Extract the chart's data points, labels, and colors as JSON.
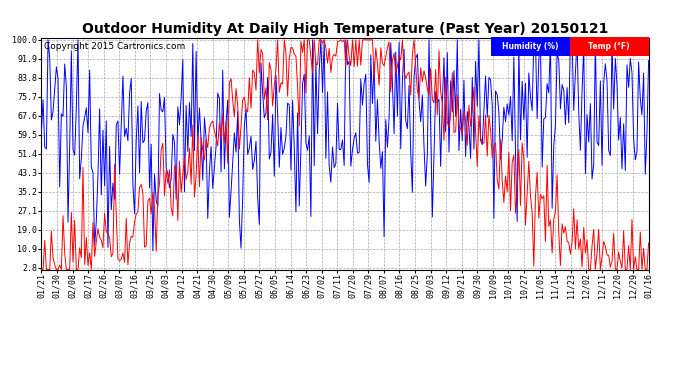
{
  "title": "Outdoor Humidity At Daily High Temperature (Past Year) 20150121",
  "copyright": "Copyright 2015 Cartronics.com",
  "legend_humidity": "Humidity (%)",
  "legend_temp": "Temp (°F)",
  "humidity_color": "blue",
  "temp_color": "red",
  "bg_color": "#ffffff",
  "plot_bg": "#ffffff",
  "yticks": [
    2.8,
    10.9,
    19.0,
    27.1,
    35.2,
    43.3,
    51.4,
    59.5,
    67.6,
    75.7,
    83.8,
    91.9,
    100.0
  ],
  "xtick_labels": [
    "01/21",
    "01/30",
    "02/08",
    "02/17",
    "02/26",
    "03/07",
    "03/16",
    "03/25",
    "04/03",
    "04/12",
    "04/21",
    "04/30",
    "05/09",
    "05/18",
    "05/27",
    "06/05",
    "06/14",
    "06/23",
    "07/02",
    "07/11",
    "07/20",
    "07/29",
    "08/07",
    "08/16",
    "08/25",
    "09/03",
    "09/12",
    "09/21",
    "09/30",
    "10/09",
    "10/18",
    "10/27",
    "11/05",
    "11/14",
    "11/23",
    "12/02",
    "12/11",
    "12/20",
    "12/29",
    "01/16"
  ],
  "n_points": 366,
  "ymin": 2.8,
  "ymax": 100.0,
  "title_fontsize": 10,
  "tick_fontsize": 6,
  "copyright_fontsize": 6.5
}
